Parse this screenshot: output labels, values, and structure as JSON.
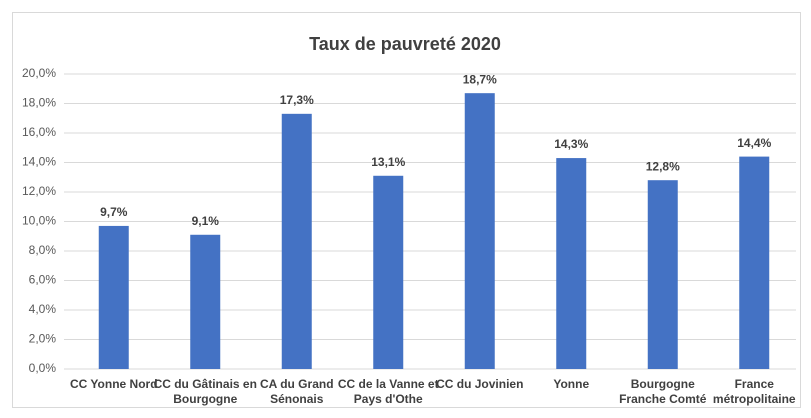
{
  "chart_data": {
    "type": "bar",
    "title": "Taux de pauvreté 2020",
    "categories": [
      "CC Yonne Nord",
      "CC du Gâtinais en Bourgogne",
      "CA du Grand Sénonais",
      "CC de la Vanne et Pays d'Othe",
      "CC du Jovinien",
      "Yonne",
      "Bourgogne Franche Comté",
      "France métropolitaine"
    ],
    "values": [
      9.7,
      9.1,
      17.3,
      13.1,
      18.7,
      14.3,
      12.8,
      14.4
    ],
    "value_labels": [
      "9,7%",
      "9,1%",
      "17,3%",
      "13,1%",
      "18,7%",
      "14,3%",
      "12,8%",
      "14,4%"
    ],
    "color": "#4472c4",
    "ylim": [
      0,
      20
    ],
    "yticks": [
      {
        "value": 0,
        "label": "0,0%"
      },
      {
        "value": 2,
        "label": "2,0%"
      },
      {
        "value": 4,
        "label": "4,0%"
      },
      {
        "value": 6,
        "label": "6,0%"
      },
      {
        "value": 8,
        "label": "8,0%"
      },
      {
        "value": 10,
        "label": "10,0%"
      },
      {
        "value": 12,
        "label": "12,0%"
      },
      {
        "value": 14,
        "label": "14,0%"
      },
      {
        "value": 16,
        "label": "16,0%"
      },
      {
        "value": 18,
        "label": "18,0%"
      },
      {
        "value": 20,
        "label": "20,0%"
      }
    ],
    "grid": true
  }
}
